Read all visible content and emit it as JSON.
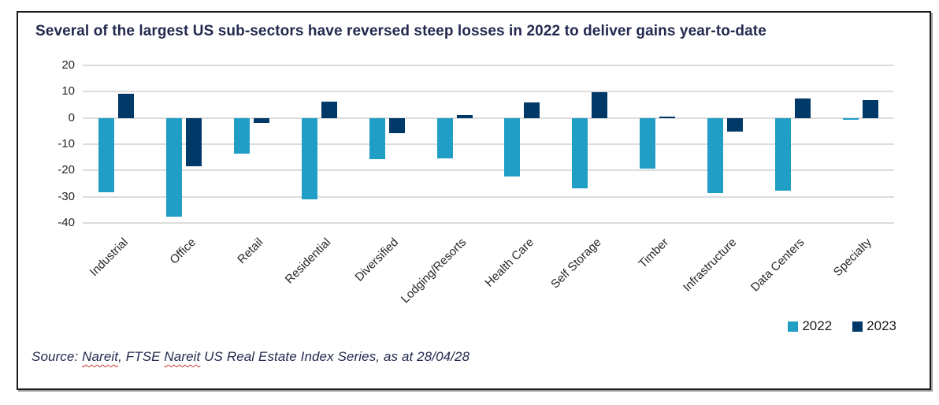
{
  "title": "Several of the largest US sub-sectors have reversed steep losses in 2022 to deliver gains year-to-date",
  "legend": {
    "items": [
      {
        "label": "2022",
        "color": "#219ec6"
      },
      {
        "label": "2023",
        "color": "#003867"
      }
    ]
  },
  "source": {
    "parts": [
      {
        "text": "Source: "
      },
      {
        "text": "Nareit"
      },
      {
        "text": ", FTSE "
      },
      {
        "text": "Nareit"
      },
      {
        "text": " US Real Estate Index Series, as at 28/04/28"
      }
    ]
  },
  "colors": {
    "series_2022": "#219ec6",
    "series_2023": "#003867",
    "title_text": "#23294f",
    "gridline": "#dcdcdc",
    "axis_text": "#262626",
    "spellcheck_underline": "#c63a31"
  },
  "chart_data": {
    "type": "bar",
    "title": "Several of the largest US sub-sectors have reversed steep losses in 2022 to deliver gains year-to-date",
    "categories": [
      "Industrial",
      "Office",
      "Retail",
      "Residential",
      "Diversified",
      "Lodging/Resorts",
      "Health Care",
      "Self Storage",
      "Timber",
      "Infrastructure",
      "Data Centers",
      "Specialty"
    ],
    "series": [
      {
        "name": "2022",
        "color": "#219ec6",
        "values": [
          -28.4,
          -37.5,
          -13.5,
          -31.0,
          -15.8,
          -15.5,
          -22.2,
          -26.7,
          -19.2,
          -28.7,
          -27.8,
          -0.7
        ]
      },
      {
        "name": "2023",
        "color": "#003867",
        "values": [
          9.3,
          -18.5,
          -1.8,
          6.3,
          -5.8,
          1.2,
          5.8,
          9.8,
          0.4,
          -5.2,
          7.5,
          6.7
        ]
      }
    ],
    "xlabel": "",
    "ylabel": "",
    "ylim": [
      -40,
      20
    ],
    "yticks": [
      20,
      10,
      0,
      -10,
      -20,
      -30,
      -40
    ],
    "grid": true,
    "legend_position": "bottom-right",
    "x_tick_rotation_deg": 45
  }
}
